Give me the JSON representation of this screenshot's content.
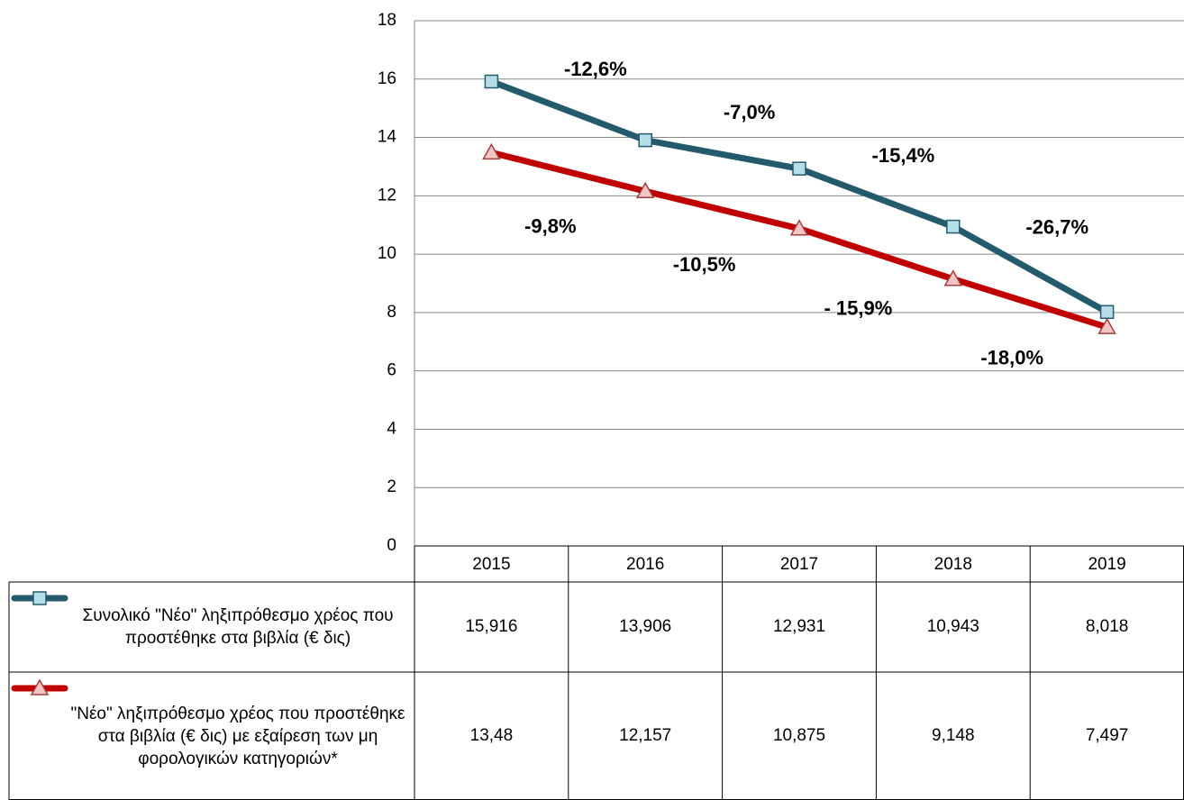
{
  "chart_data": {
    "type": "line",
    "categories": [
      "2015",
      "2016",
      "2017",
      "2018",
      "2019"
    ],
    "series": [
      {
        "name": "Συνολικό \"Νέο\" ληξιπρόθεσμο χρέος που προστέθηκε στα βιβλία (€ δις)",
        "color": "#235b6c",
        "marker": "square",
        "marker_color": "#b7dde8",
        "values": [
          15.916,
          13.906,
          12.931,
          10.943,
          8.018
        ],
        "value_labels": [
          "15,916",
          "13,906",
          "12,931",
          "10,943",
          "8,018"
        ],
        "change_labels": [
          "-12,6%",
          "-7,0%",
          "-15,4%",
          "-26,7%"
        ],
        "change_label_color": "#235b6c"
      },
      {
        "name": "\"Νέο\" ληξιπρόθεσμο χρέος που προστέθηκε στα βιβλία   (€ δις) με εξαίρεση των μη φορολογικών κατηγοριών*",
        "color": "#c00000",
        "marker": "triangle",
        "marker_color": "#f2c4c4",
        "values": [
          13.48,
          12.157,
          10.875,
          9.148,
          7.497
        ],
        "value_labels": [
          "13,48",
          "12,157",
          "10,875",
          "9,148",
          "7,497"
        ],
        "change_labels": [
          "-9,8%",
          "-10,5%",
          "- 15,9%",
          "-18,0%"
        ],
        "change_label_color": "#a0373a"
      }
    ],
    "ylim": [
      0,
      18
    ],
    "yticks": [
      0,
      2,
      4,
      6,
      8,
      10,
      12,
      14,
      16,
      18
    ],
    "grid": true,
    "data_table": true
  }
}
